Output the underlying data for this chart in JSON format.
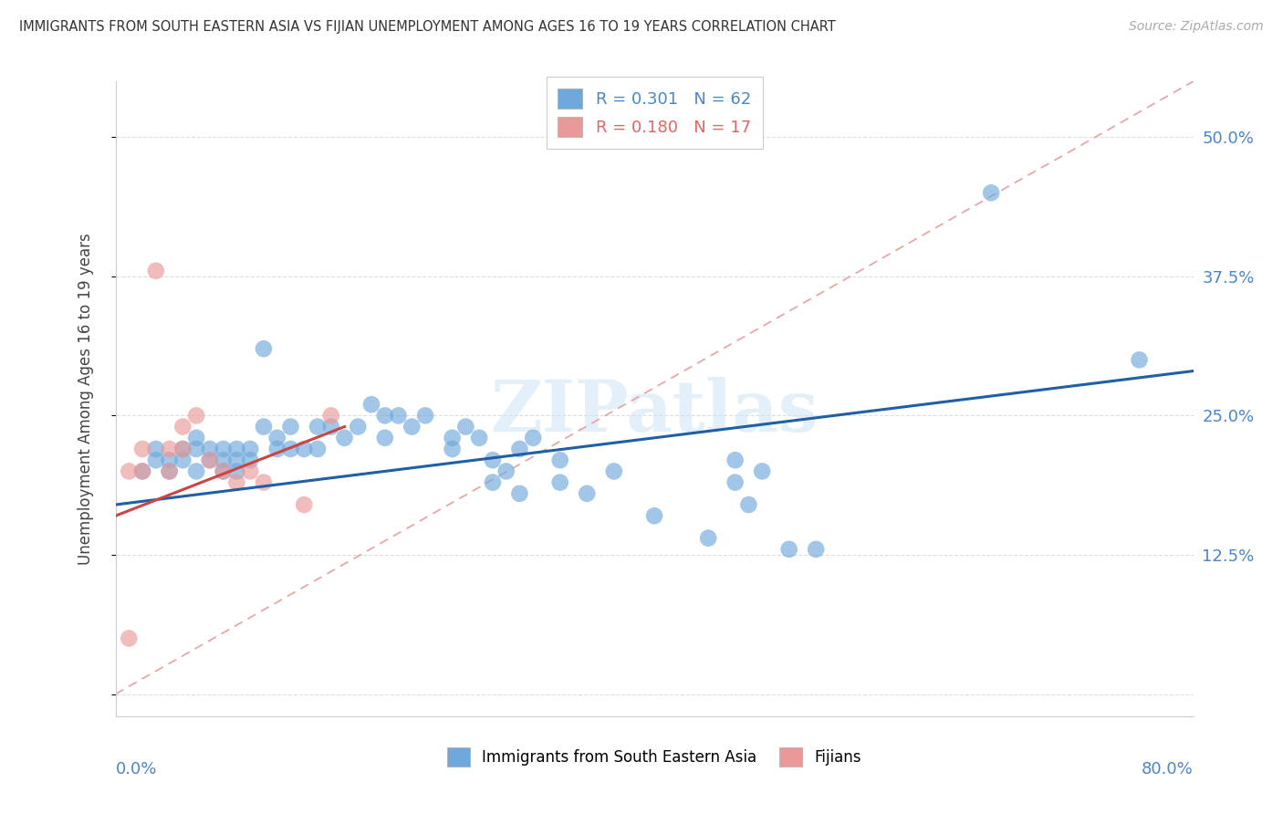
{
  "title": "IMMIGRANTS FROM SOUTH EASTERN ASIA VS FIJIAN UNEMPLOYMENT AMONG AGES 16 TO 19 YEARS CORRELATION CHART",
  "source": "Source: ZipAtlas.com",
  "ylabel": "Unemployment Among Ages 16 to 19 years",
  "xlim": [
    0.0,
    0.8
  ],
  "ylim": [
    -0.02,
    0.55
  ],
  "ytick_vals": [
    0.0,
    0.125,
    0.25,
    0.375,
    0.5
  ],
  "ytick_labels": [
    "",
    "12.5%",
    "25.0%",
    "37.5%",
    "50.0%"
  ],
  "legend1_r": "0.301",
  "legend1_n": "62",
  "legend2_r": "0.180",
  "legend2_n": "17",
  "legend_xlabel1": "Immigrants from South Eastern Asia",
  "legend_xlabel2": "Fijians",
  "blue_color": "#6fa8dc",
  "pink_color": "#ea9999",
  "blue_line_color": "#1f5fa6",
  "pink_line_color": "#cc4444",
  "dashed_line_color": "#e8a0a0",
  "watermark": "ZIPatlas",
  "blue_x": [
    0.02,
    0.03,
    0.03,
    0.04,
    0.04,
    0.05,
    0.05,
    0.06,
    0.06,
    0.06,
    0.07,
    0.07,
    0.08,
    0.08,
    0.08,
    0.09,
    0.09,
    0.09,
    0.1,
    0.1,
    0.11,
    0.11,
    0.12,
    0.12,
    0.13,
    0.13,
    0.14,
    0.15,
    0.15,
    0.16,
    0.17,
    0.18,
    0.19,
    0.2,
    0.2,
    0.21,
    0.22,
    0.23,
    0.25,
    0.25,
    0.26,
    0.27,
    0.28,
    0.28,
    0.29,
    0.3,
    0.3,
    0.31,
    0.33,
    0.33,
    0.35,
    0.37,
    0.4,
    0.44,
    0.46,
    0.46,
    0.47,
    0.48,
    0.5,
    0.52,
    0.65,
    0.76
  ],
  "blue_y": [
    0.2,
    0.21,
    0.22,
    0.21,
    0.2,
    0.21,
    0.22,
    0.2,
    0.22,
    0.23,
    0.21,
    0.22,
    0.2,
    0.21,
    0.22,
    0.2,
    0.21,
    0.22,
    0.21,
    0.22,
    0.31,
    0.24,
    0.23,
    0.22,
    0.24,
    0.22,
    0.22,
    0.24,
    0.22,
    0.24,
    0.23,
    0.24,
    0.26,
    0.25,
    0.23,
    0.25,
    0.24,
    0.25,
    0.22,
    0.23,
    0.24,
    0.23,
    0.19,
    0.21,
    0.2,
    0.22,
    0.18,
    0.23,
    0.19,
    0.21,
    0.18,
    0.2,
    0.16,
    0.14,
    0.19,
    0.21,
    0.17,
    0.2,
    0.13,
    0.13,
    0.45,
    0.3
  ],
  "pink_x": [
    0.01,
    0.01,
    0.02,
    0.02,
    0.03,
    0.04,
    0.04,
    0.05,
    0.05,
    0.06,
    0.07,
    0.08,
    0.09,
    0.1,
    0.11,
    0.14,
    0.16
  ],
  "pink_y": [
    0.05,
    0.2,
    0.2,
    0.22,
    0.38,
    0.2,
    0.22,
    0.22,
    0.24,
    0.25,
    0.21,
    0.2,
    0.19,
    0.2,
    0.19,
    0.17,
    0.25
  ]
}
